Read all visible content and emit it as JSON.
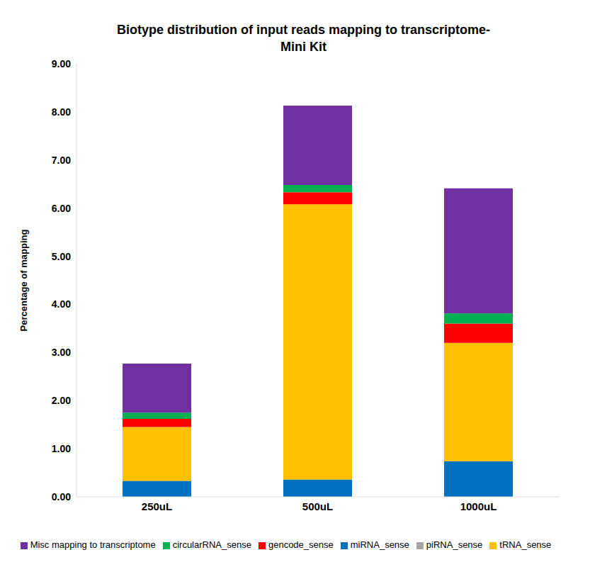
{
  "chart_data": {
    "type": "bar",
    "title": "Biotype distribution of input reads mapping to transcriptome- Mini Kit",
    "y_label": "Percentage of mapping",
    "categories": [
      "250uL",
      "500uL",
      "1000uL"
    ],
    "series": [
      {
        "name": "miRNA_sense",
        "color": "#0070C0",
        "values": [
          0.33,
          0.36,
          0.74
        ]
      },
      {
        "name": "tRNA_sense",
        "color": "#FFC000",
        "values": [
          1.12,
          5.72,
          2.46
        ]
      },
      {
        "name": "piRNA_sense",
        "color": "#A5A5A5",
        "values": [
          0,
          0,
          0
        ]
      },
      {
        "name": "gencode_sense",
        "color": "#FF0000",
        "values": [
          0.17,
          0.25,
          0.4
        ]
      },
      {
        "name": "circularRNA_sense",
        "color": "#00B050",
        "values": [
          0.13,
          0.15,
          0.21
        ]
      },
      {
        "name": "Misc mapping to transcriptome",
        "color": "#7030A0",
        "values": [
          1.02,
          1.65,
          2.6
        ]
      }
    ],
    "ylim": [
      0,
      9
    ],
    "yticks": [
      {
        "value": 0,
        "label": "0.00"
      },
      {
        "value": 1,
        "label": "1.00"
      },
      {
        "value": 2,
        "label": "2.00"
      },
      {
        "value": 3,
        "label": "3.00"
      },
      {
        "value": 4,
        "label": "4.00"
      },
      {
        "value": 5,
        "label": "5.00"
      },
      {
        "value": 6,
        "label": "6.00"
      },
      {
        "value": 7,
        "label": "7.00"
      },
      {
        "value": 8,
        "label": "8.00"
      },
      {
        "value": 9,
        "label": "9.00"
      }
    ],
    "stacked": true,
    "grid": false,
    "legend": "bottom"
  }
}
